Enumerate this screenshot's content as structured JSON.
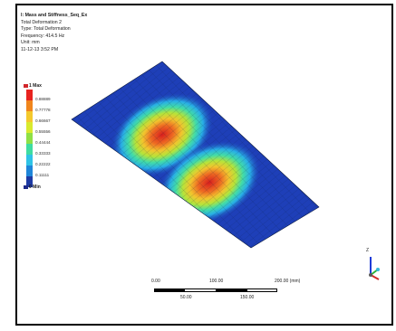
{
  "info": {
    "title": "I: Mass and Stiffness_Seq_Ex",
    "lines": [
      "Total Deformation 2",
      "Type: Total Deformation",
      "Frequency: 414.5 Hz",
      "Unit: mm",
      "11-12-13 3:52 PM"
    ]
  },
  "legend": {
    "max_label": "1 Max",
    "min_label": "0 Min",
    "ticks": [
      "0.88889",
      "0.77778",
      "0.66667",
      "0.55556",
      "0.44444",
      "0.33333",
      "0.22222",
      "0.11111"
    ],
    "colors": [
      "#e8231f",
      "#f0851c",
      "#f4c92d",
      "#d9ea2e",
      "#8fe046",
      "#3fdca1",
      "#2fc3e6",
      "#1f86d9",
      "#1e3aa4"
    ]
  },
  "scale": {
    "top_labels": [
      "0.00",
      "100.00",
      "200.00 (mm)"
    ],
    "bottom_labels": [
      "50.00",
      "150.00"
    ]
  },
  "triad": {
    "z_label": "Z",
    "y_label": "Y",
    "x_label": "X",
    "colors": {
      "z": "#1f3bd8",
      "y": "#2bb03a",
      "x": "#d42a2a"
    }
  },
  "plot": {
    "mode_shape": "two-lobe",
    "plate_base_color": "#1e3fb8"
  }
}
